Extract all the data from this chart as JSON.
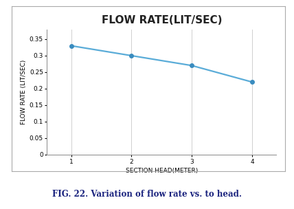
{
  "title": "FLOW RATE(LIT/SEC)",
  "xlabel": "SECTION HEAD(METER)",
  "ylabel": "FLOW RATE (LIT/SEC)",
  "x": [
    1,
    2,
    3,
    4
  ],
  "y": [
    0.33,
    0.3,
    0.27,
    0.22
  ],
  "xlim": [
    0.6,
    4.4
  ],
  "ylim": [
    0,
    0.38
  ],
  "yticks": [
    0,
    0.05,
    0.1,
    0.15,
    0.2,
    0.25,
    0.3,
    0.35
  ],
  "xticks": [
    1,
    2,
    3,
    4
  ],
  "line_color": "#5aacd8",
  "marker": "o",
  "marker_color": "#3a8cbf",
  "marker_size": 4,
  "line_width": 1.6,
  "title_fontsize": 11,
  "label_fontsize": 6.5,
  "tick_fontsize": 6.5,
  "caption": "FIG. 22. Variation of flow rate vs. to head.",
  "caption_fontsize": 8.5,
  "bg_color": "#ffffff",
  "grid_color": "#d0d0d0",
  "border_color": "#aaaaaa",
  "caption_color": "#1a237e"
}
